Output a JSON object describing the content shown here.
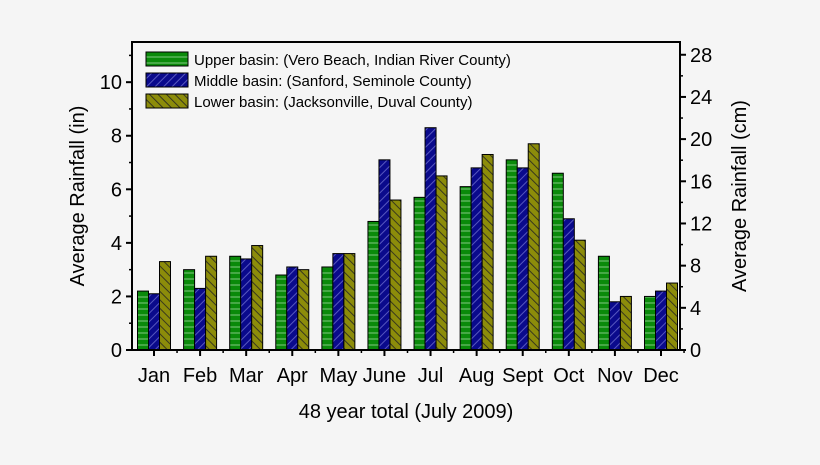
{
  "chart_data": {
    "type": "bar",
    "title": "",
    "xlabel": "48 year total (July 2009)",
    "ylabel": "Average Rainfall (in)",
    "y2label": "Average Rainfall (cm)",
    "categories": [
      "Jan",
      "Feb",
      "Mar",
      "Apr",
      "May",
      "June",
      "Jul",
      "Aug",
      "Sept",
      "Oct",
      "Nov",
      "Dec"
    ],
    "series": [
      {
        "name": "Upper basin: (Vero Beach, Indian River County)",
        "color": "#0a8a0a",
        "values": [
          2.2,
          3.0,
          3.5,
          2.8,
          3.1,
          4.8,
          5.7,
          6.1,
          7.1,
          6.6,
          3.5,
          2.0
        ]
      },
      {
        "name": "Middle basin: (Sanford, Seminole County)",
        "color": "#0a0a8c",
        "values": [
          2.1,
          2.3,
          3.4,
          3.1,
          3.6,
          7.1,
          8.3,
          6.8,
          6.8,
          4.9,
          1.8,
          2.2
        ]
      },
      {
        "name": "Lower basin: (Jacksonville, Duval County)",
        "color": "#8c8c0a",
        "values": [
          3.3,
          3.5,
          3.9,
          3.0,
          3.6,
          5.6,
          6.5,
          7.3,
          7.7,
          4.1,
          2.0,
          2.5
        ]
      }
    ],
    "ylim": [
      0,
      11.5
    ],
    "yticks": [
      0,
      2,
      4,
      6,
      8,
      10
    ],
    "y2lim": [
      0,
      29.21
    ],
    "y2ticks": [
      0,
      4,
      8,
      12,
      16,
      20,
      24,
      28
    ],
    "grid": false,
    "legend": "top-left"
  }
}
